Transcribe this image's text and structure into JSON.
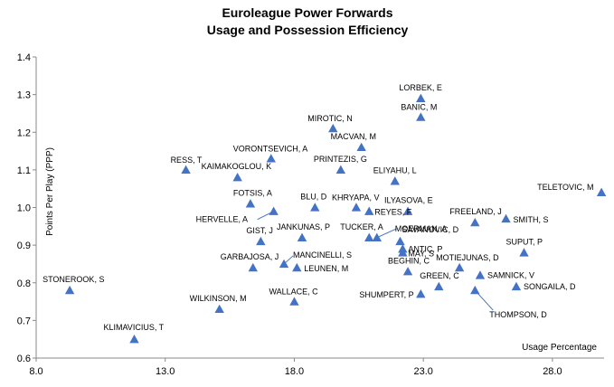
{
  "chart_data": {
    "type": "scatter",
    "title": "Euroleague Power Forwards",
    "subtitle": "Usage and Possession Efficiency",
    "xlabel": "Usage Percentage",
    "ylabel": "Points Per Play (PPP)",
    "xlim": [
      8.0,
      30.0
    ],
    "ylim": [
      0.6,
      1.4
    ],
    "x_ticks": [
      "8.0",
      "13.0",
      "18.0",
      "23.0",
      "28.0"
    ],
    "y_ticks": [
      "0.6",
      "0.7",
      "0.8",
      "0.9",
      "1.0",
      "1.1",
      "1.2",
      "1.3",
      "1.4"
    ],
    "grid": false,
    "marker": "triangle",
    "marker_color": "#4472C4",
    "points": [
      {
        "label": "LORBEK, E",
        "x": 22.9,
        "y": 1.29
      },
      {
        "label": "BANIC, M",
        "x": 22.9,
        "y": 1.24
      },
      {
        "label": "MIROTIC, N",
        "x": 19.5,
        "y": 1.21
      },
      {
        "label": "MACVAN, M",
        "x": 20.6,
        "y": 1.16
      },
      {
        "label": "VORONTSEVICH, A",
        "x": 17.1,
        "y": 1.13
      },
      {
        "label": "PRINTEZIS, G",
        "x": 19.8,
        "y": 1.1
      },
      {
        "label": "RESS, T",
        "x": 13.8,
        "y": 1.1
      },
      {
        "label": "KAIMAKOGLOU, K",
        "x": 15.8,
        "y": 1.08
      },
      {
        "label": "ELIYAHU, L",
        "x": 21.9,
        "y": 1.07
      },
      {
        "label": "TELETOVIC, M",
        "x": 29.9,
        "y": 1.04
      },
      {
        "label": "FOTSIS, A",
        "x": 16.3,
        "y": 1.01
      },
      {
        "label": "BLU, D",
        "x": 18.8,
        "y": 1.0
      },
      {
        "label": "KHRYAPA, V",
        "x": 20.4,
        "y": 1.0
      },
      {
        "label": "ILYASOVA, E",
        "x": 22.4,
        "y": 0.99
      },
      {
        "label": "REYES, F",
        "x": 20.9,
        "y": 0.99
      },
      {
        "label": "HERVELLE, A",
        "x": 17.2,
        "y": 0.99
      },
      {
        "label": "SMITH, S",
        "x": 26.2,
        "y": 0.97
      },
      {
        "label": "FREELAND, J",
        "x": 25.0,
        "y": 0.96
      },
      {
        "label": "MOERMAN, A",
        "x": 21.2,
        "y": 0.92
      },
      {
        "label": "TUCKER, A",
        "x": 20.9,
        "y": 0.92
      },
      {
        "label": "JANKUNAS, P",
        "x": 18.3,
        "y": 0.92
      },
      {
        "label": "GIST, J",
        "x": 16.7,
        "y": 0.91
      },
      {
        "label": "SAVANOVIC, D",
        "x": 22.1,
        "y": 0.91
      },
      {
        "label": "ANTIC, P",
        "x": 22.2,
        "y": 0.89
      },
      {
        "label": "SUPUT, P",
        "x": 26.9,
        "y": 0.88
      },
      {
        "label": "MAY, S",
        "x": 22.2,
        "y": 0.88
      },
      {
        "label": "MANCINELLI, S",
        "x": 17.6,
        "y": 0.85
      },
      {
        "label": "GARBAJOSA, J",
        "x": 16.4,
        "y": 0.84
      },
      {
        "label": "LEUNEN, M",
        "x": 18.1,
        "y": 0.84
      },
      {
        "label": "BEGHIN, C",
        "x": 22.4,
        "y": 0.83
      },
      {
        "label": "MOTIEJUNAS, D",
        "x": 24.4,
        "y": 0.84
      },
      {
        "label": "SAMNICK, V",
        "x": 25.2,
        "y": 0.82
      },
      {
        "label": "SONGAILA, D",
        "x": 26.6,
        "y": 0.79
      },
      {
        "label": "GREEN, C",
        "x": 23.6,
        "y": 0.79
      },
      {
        "label": "STONEROOK, S",
        "x": 9.3,
        "y": 0.78
      },
      {
        "label": "THOMPSON, D",
        "x": 25.0,
        "y": 0.78
      },
      {
        "label": "SHUMPERT, P",
        "x": 22.9,
        "y": 0.77
      },
      {
        "label": "WALLACE, C",
        "x": 18.0,
        "y": 0.75
      },
      {
        "label": "WILKINSON, M",
        "x": 15.1,
        "y": 0.73
      },
      {
        "label": "KLIMAVICIUS, T",
        "x": 11.8,
        "y": 0.65
      }
    ]
  }
}
